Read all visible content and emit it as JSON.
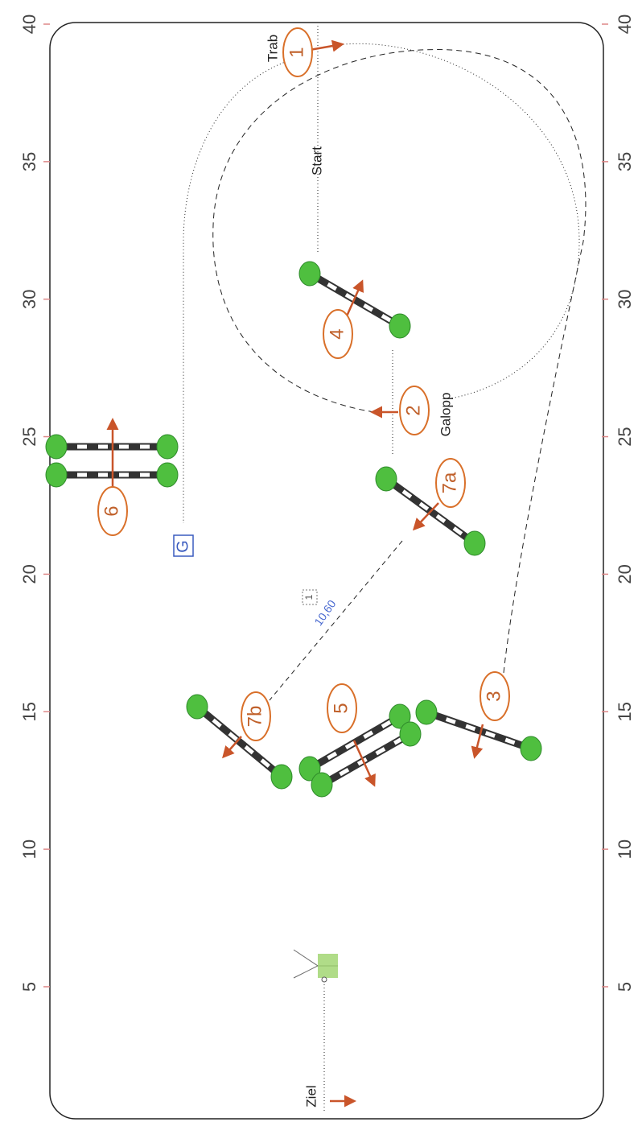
{
  "scale": {
    "left": [
      5,
      10,
      15,
      20,
      25,
      30,
      35,
      40
    ],
    "right": [
      5,
      10,
      15,
      20,
      25,
      30,
      35,
      40
    ]
  },
  "labels": {
    "trab": "Trab",
    "start": "Start",
    "galopp": "Galopp",
    "ziel": "Ziel",
    "g": "G",
    "distance": "10,60",
    "note": "1"
  },
  "jumps": [
    "1",
    "2",
    "3",
    "4",
    "5",
    "6",
    "7a",
    "7b"
  ]
}
